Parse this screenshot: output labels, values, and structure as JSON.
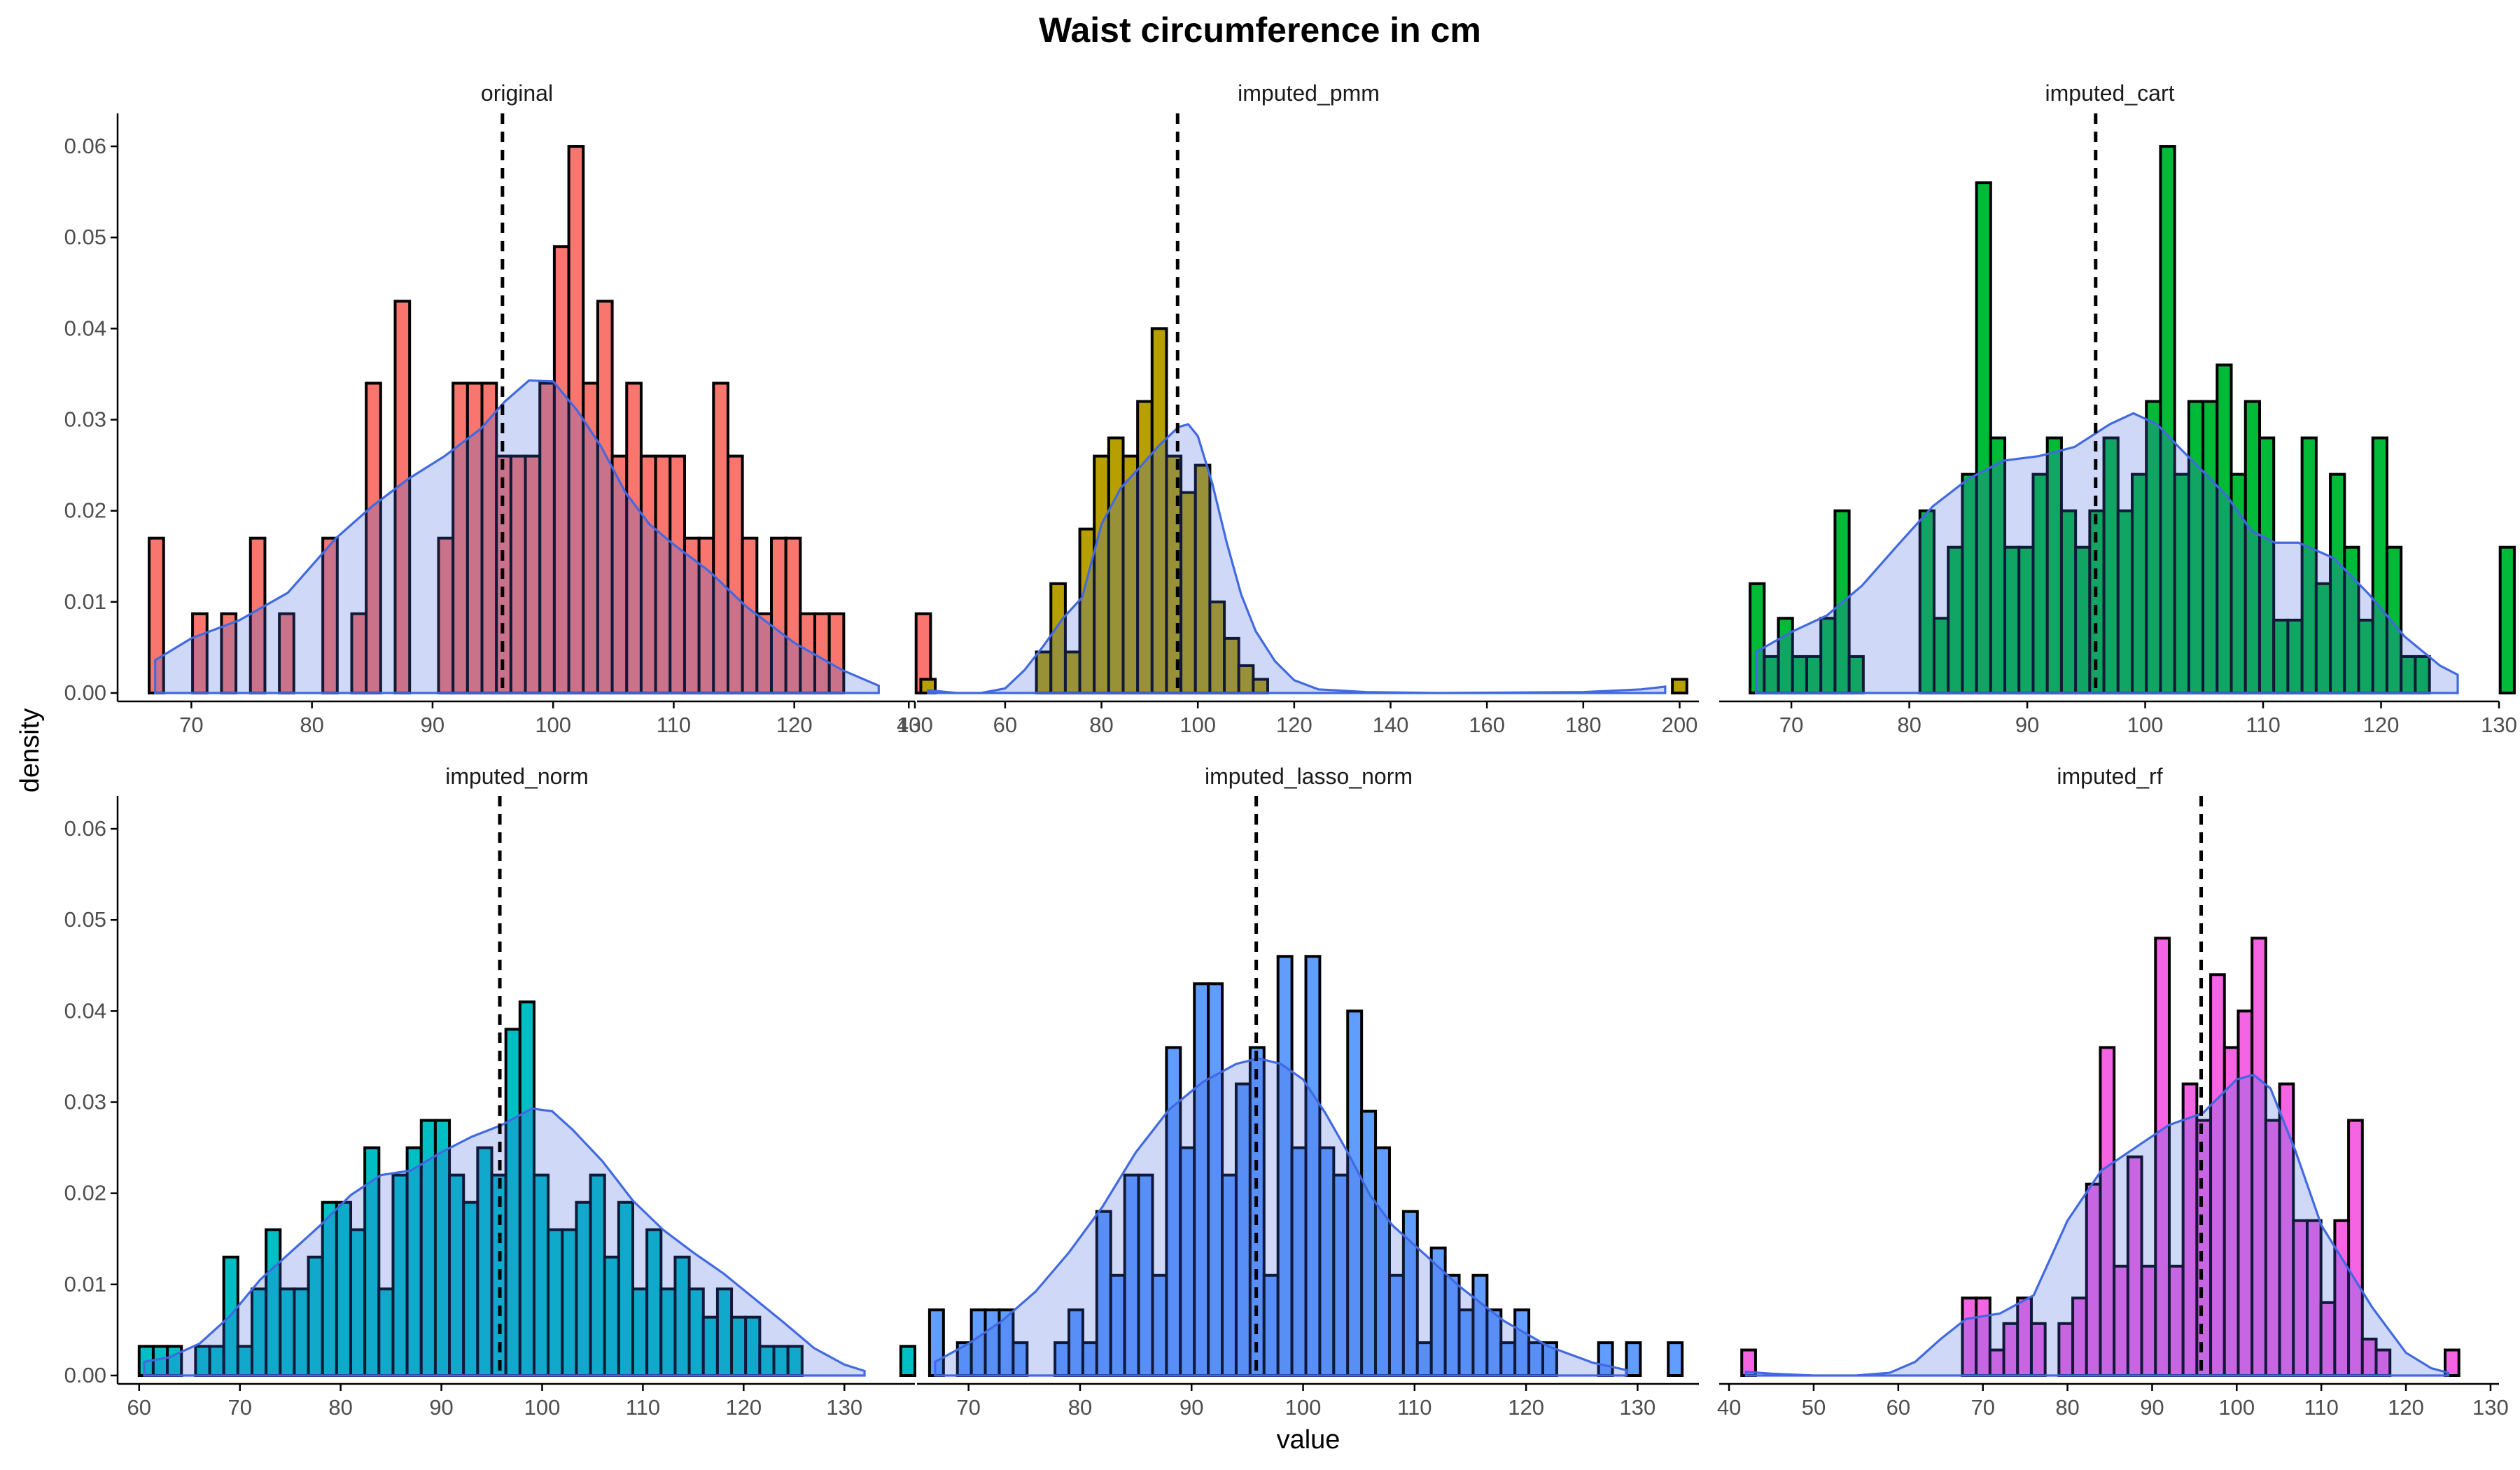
{
  "title": "Waist circumference in cm",
  "xlabel": "value",
  "ylabel": "density",
  "chart_data": {
    "type": "histogram",
    "title": "Waist circumference in cm",
    "xlabel": "value",
    "ylabel": "density",
    "ylim": [
      0,
      0.063
    ],
    "y_ticks": [
      0.0,
      0.01,
      0.02,
      0.03,
      0.04,
      0.05,
      0.06
    ],
    "y_tick_labels": [
      "0.00",
      "0.01",
      "0.02",
      "0.03",
      "0.04",
      "0.05",
      "0.06"
    ],
    "grid": false,
    "layout": "2 rows x 3 columns facets, shared y axis",
    "mean_line": {
      "value": 95.8,
      "style": "dashed",
      "color": "#000000"
    },
    "density_color": "#4169e1",
    "panels": [
      {
        "name": "original",
        "fill": "#f8766d",
        "xlim": [
          64,
          130
        ],
        "x_ticks": [
          70,
          80,
          90,
          100,
          110,
          120,
          130
        ],
        "bin_start": 66.5,
        "bin_width": 1.2,
        "counts": [
          0.017,
          0,
          0,
          0.0087,
          0,
          0.0087,
          0,
          0.017,
          0,
          0.0087,
          0,
          0,
          0.017,
          0,
          0.0087,
          0.034,
          0,
          0.043,
          0,
          0,
          0.017,
          0.034,
          0.034,
          0.034,
          0.026,
          0.026,
          0.026,
          0.034,
          0.049,
          0.06,
          0.034,
          0.043,
          0.026,
          0.034,
          0.026,
          0.026,
          0.026,
          0.017,
          0.017,
          0.034,
          0.026,
          0.017,
          0.0087,
          0.017,
          0.017,
          0.0087,
          0.0087,
          0.0087,
          0,
          0,
          0,
          0,
          0,
          0.0087
        ],
        "density": [
          [
            67,
            0.0036
          ],
          [
            70,
            0.006
          ],
          [
            74,
            0.008
          ],
          [
            78,
            0.011
          ],
          [
            82,
            0.017
          ],
          [
            85,
            0.0205
          ],
          [
            88,
            0.0235
          ],
          [
            91,
            0.026
          ],
          [
            94,
            0.029
          ],
          [
            96,
            0.032
          ],
          [
            98,
            0.0343
          ],
          [
            100,
            0.0342
          ],
          [
            102,
            0.031
          ],
          [
            104,
            0.027
          ],
          [
            106,
            0.022
          ],
          [
            108,
            0.0185
          ],
          [
            110,
            0.0163
          ],
          [
            113,
            0.0133
          ],
          [
            116,
            0.0095
          ],
          [
            120,
            0.0055
          ],
          [
            124,
            0.0025
          ],
          [
            127,
            0.0008
          ]
        ]
      },
      {
        "name": "imputed_pmm",
        "fill": "#b79f00",
        "xlim": [
          42,
          204
        ],
        "x_ticks": [
          40,
          60,
          80,
          100,
          120,
          140,
          160,
          180,
          200
        ],
        "bin_start": 42.5,
        "bin_width": 3.0,
        "counts": [
          0.0015,
          0,
          0,
          0,
          0,
          0,
          0,
          0,
          0.0045,
          0.012,
          0.0045,
          0.018,
          0.026,
          0.028,
          0.026,
          0.032,
          0.04,
          0.026,
          0.022,
          0.025,
          0.01,
          0.006,
          0.003,
          0.0015,
          0,
          0,
          0,
          0,
          0,
          0,
          0,
          0,
          0,
          0,
          0,
          0,
          0,
          0,
          0,
          0,
          0,
          0,
          0,
          0,
          0,
          0,
          0,
          0,
          0,
          0,
          0,
          0,
          0.0015
        ],
        "density": [
          [
            44,
            0.0003
          ],
          [
            50,
            0
          ],
          [
            55,
            0
          ],
          [
            60,
            0.0005
          ],
          [
            64,
            0.0025
          ],
          [
            68,
            0.0052
          ],
          [
            72,
            0.0082
          ],
          [
            76,
            0.0105
          ],
          [
            80,
            0.0185
          ],
          [
            84,
            0.0225
          ],
          [
            88,
            0.0248
          ],
          [
            92,
            0.0272
          ],
          [
            96,
            0.0292
          ],
          [
            98,
            0.0295
          ],
          [
            100,
            0.0282
          ],
          [
            103,
            0.023
          ],
          [
            106,
            0.0165
          ],
          [
            109,
            0.0108
          ],
          [
            112,
            0.0068
          ],
          [
            116,
            0.0035
          ],
          [
            120,
            0.0014
          ],
          [
            125,
            0.0004
          ],
          [
            135,
            0.0001
          ],
          [
            150,
            0
          ],
          [
            180,
            0.0001
          ],
          [
            192,
            0.0004
          ],
          [
            197,
            0.0007
          ]
        ]
      },
      {
        "name": "imputed_cart",
        "fill": "#00ba38",
        "xlim": [
          64,
          130
        ],
        "x_ticks": [
          70,
          80,
          90,
          100,
          110,
          120,
          130
        ],
        "bin_start": 66.5,
        "bin_width": 1.2,
        "counts": [
          0.012,
          0.004,
          0.0082,
          0.004,
          0.004,
          0.0082,
          0.02,
          0.004,
          0,
          0,
          0,
          0,
          0.02,
          0.0082,
          0.016,
          0.024,
          0.056,
          0.028,
          0.016,
          0.016,
          0.024,
          0.028,
          0.02,
          0.016,
          0.02,
          0.028,
          0.02,
          0.024,
          0.032,
          0.06,
          0.024,
          0.032,
          0.032,
          0.036,
          0.024,
          0.032,
          0.028,
          0.008,
          0.008,
          0.028,
          0.012,
          0.024,
          0.016,
          0.008,
          0.028,
          0.016,
          0.004,
          0.004,
          0,
          0,
          0,
          0,
          0,
          0.016
        ],
        "density": [
          [
            67,
            0.0045
          ],
          [
            70,
            0.0067
          ],
          [
            73,
            0.0085
          ],
          [
            76,
            0.0118
          ],
          [
            79,
            0.0162
          ],
          [
            82,
            0.0205
          ],
          [
            85,
            0.0235
          ],
          [
            88,
            0.0255
          ],
          [
            91,
            0.026
          ],
          [
            94,
            0.027
          ],
          [
            97,
            0.0295
          ],
          [
            99,
            0.0307
          ],
          [
            101,
            0.0295
          ],
          [
            103,
            0.0268
          ],
          [
            105,
            0.0242
          ],
          [
            107,
            0.0215
          ],
          [
            109,
            0.0178
          ],
          [
            111,
            0.0165
          ],
          [
            113,
            0.0165
          ],
          [
            116,
            0.0148
          ],
          [
            119,
            0.0108
          ],
          [
            122,
            0.0062
          ],
          [
            125,
            0.003
          ],
          [
            126.5,
            0.002
          ]
        ]
      },
      {
        "name": "imputed_norm",
        "fill": "#00bfc4",
        "xlim": [
          58,
          137
        ],
        "x_ticks": [
          60,
          70,
          80,
          90,
          100,
          110,
          120,
          130
        ],
        "bin_start": 60.0,
        "bin_width": 1.4,
        "counts": [
          0.0032,
          0.0032,
          0.0032,
          0,
          0.0032,
          0.0032,
          0.013,
          0.0032,
          0.0095,
          0.016,
          0.0095,
          0.0095,
          0.013,
          0.019,
          0.019,
          0.016,
          0.025,
          0.0095,
          0.022,
          0.025,
          0.028,
          0.028,
          0.022,
          0.019,
          0.025,
          0.022,
          0.038,
          0.041,
          0.022,
          0.016,
          0.016,
          0.019,
          0.022,
          0.013,
          0.019,
          0.0095,
          0.016,
          0.0095,
          0.013,
          0.0095,
          0.0064,
          0.0095,
          0.0064,
          0.0064,
          0.0032,
          0.0032,
          0.0032,
          0,
          0,
          0,
          0,
          0,
          0,
          0,
          0.0032
        ],
        "density": [
          [
            60.5,
            0.0015
          ],
          [
            63,
            0.002
          ],
          [
            66,
            0.0035
          ],
          [
            69,
            0.0065
          ],
          [
            72,
            0.0105
          ],
          [
            75,
            0.0135
          ],
          [
            78,
            0.0165
          ],
          [
            81,
            0.0198
          ],
          [
            84,
            0.022
          ],
          [
            87,
            0.0225
          ],
          [
            90,
            0.0245
          ],
          [
            93,
            0.0262
          ],
          [
            96,
            0.0275
          ],
          [
            99,
            0.0293
          ],
          [
            101,
            0.029
          ],
          [
            103,
            0.027
          ],
          [
            106,
            0.0235
          ],
          [
            109,
            0.0192
          ],
          [
            112,
            0.016
          ],
          [
            115,
            0.0135
          ],
          [
            118,
            0.0112
          ],
          [
            121,
            0.0085
          ],
          [
            124,
            0.0058
          ],
          [
            127,
            0.003
          ],
          [
            130,
            0.0012
          ],
          [
            132,
            0.0005
          ]
        ]
      },
      {
        "name": "imputed_lasso_norm",
        "fill": "#619cff",
        "xlim": [
          65.5,
          135.5
        ],
        "x_ticks": [
          70,
          80,
          90,
          100,
          110,
          120,
          130
        ],
        "bin_start": 66.5,
        "bin_width": 1.25,
        "counts": [
          0.0072,
          0,
          0.0036,
          0.0072,
          0.0072,
          0.0072,
          0.0036,
          0,
          0,
          0.0036,
          0.0072,
          0.0036,
          0.018,
          0.011,
          0.022,
          0.022,
          0.011,
          0.036,
          0.025,
          0.043,
          0.043,
          0.022,
          0.032,
          0.036,
          0.011,
          0.046,
          0.025,
          0.046,
          0.025,
          0.022,
          0.04,
          0.029,
          0.025,
          0.011,
          0.018,
          0.0036,
          0.014,
          0.011,
          0.0072,
          0.011,
          0.0072,
          0.0036,
          0.0072,
          0.0036,
          0.0036,
          0,
          0,
          0,
          0.0036,
          0,
          0.0036,
          0,
          0,
          0.0036
        ],
        "density": [
          [
            67,
            0.0015
          ],
          [
            70,
            0.0035
          ],
          [
            73,
            0.006
          ],
          [
            76,
            0.0092
          ],
          [
            79,
            0.0135
          ],
          [
            82,
            0.0185
          ],
          [
            85,
            0.0245
          ],
          [
            88,
            0.0292
          ],
          [
            91,
            0.0322
          ],
          [
            94,
            0.0342
          ],
          [
            96,
            0.0348
          ],
          [
            98,
            0.0342
          ],
          [
            100,
            0.0325
          ],
          [
            102,
            0.0288
          ],
          [
            104,
            0.0245
          ],
          [
            106,
            0.0198
          ],
          [
            108,
            0.0165
          ],
          [
            111,
            0.0132
          ],
          [
            114,
            0.0098
          ],
          [
            118,
            0.006
          ],
          [
            122,
            0.0032
          ],
          [
            126,
            0.0014
          ],
          [
            129,
            0.0006
          ]
        ]
      },
      {
        "name": "imputed_rf",
        "fill": "#f564e3",
        "xlim": [
          39,
          131
        ],
        "x_ticks": [
          40,
          50,
          60,
          70,
          80,
          90,
          100,
          110,
          120,
          130
        ],
        "bin_start": 41.5,
        "bin_width": 1.63,
        "counts": [
          0.0028,
          0,
          0,
          0,
          0,
          0,
          0,
          0,
          0,
          0,
          0,
          0,
          0,
          0,
          0,
          0,
          0.0085,
          0.0085,
          0.0028,
          0.0057,
          0.0085,
          0.0057,
          0,
          0.0057,
          0.0085,
          0.021,
          0.036,
          0.012,
          0.024,
          0.012,
          0.048,
          0.012,
          0.032,
          0.028,
          0.044,
          0.036,
          0.04,
          0.048,
          0.028,
          0.032,
          0.017,
          0.017,
          0.008,
          0.017,
          0.028,
          0.004,
          0.0028,
          0,
          0,
          0,
          0,
          0.0028
        ],
        "density": [
          [
            42,
            0.0004
          ],
          [
            45,
            0.0002
          ],
          [
            50,
            0
          ],
          [
            55,
            0
          ],
          [
            59,
            0.0003
          ],
          [
            62,
            0.0015
          ],
          [
            65,
            0.004
          ],
          [
            68,
            0.0062
          ],
          [
            72,
            0.0068
          ],
          [
            76,
            0.0088
          ],
          [
            80,
            0.017
          ],
          [
            84,
            0.0225
          ],
          [
            88,
            0.025
          ],
          [
            92,
            0.0275
          ],
          [
            96,
            0.0288
          ],
          [
            100,
            0.0325
          ],
          [
            102,
            0.033
          ],
          [
            104,
            0.0315
          ],
          [
            107,
            0.0245
          ],
          [
            110,
            0.0165
          ],
          [
            113,
            0.012
          ],
          [
            116,
            0.0075
          ],
          [
            120,
            0.0025
          ],
          [
            123,
            0.0008
          ],
          [
            125,
            0.0003
          ]
        ]
      }
    ]
  }
}
